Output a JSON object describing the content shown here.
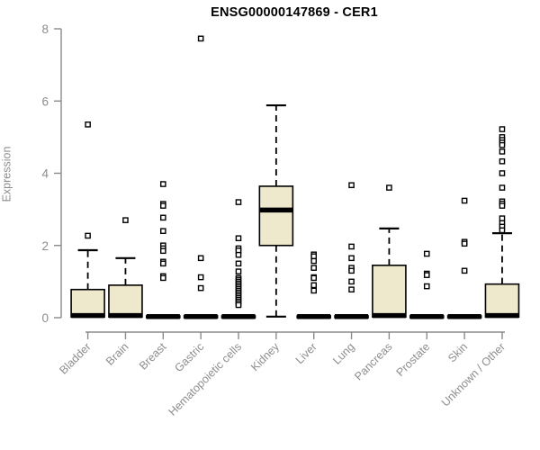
{
  "chart_data": {
    "type": "box",
    "title": "ENSG00000147869 - CER1",
    "ylabel": "Expression",
    "xlabel": "",
    "ylim": [
      0,
      8
    ],
    "yticks": [
      0,
      2,
      4,
      6,
      8
    ],
    "grid": false,
    "legend": "none",
    "categories": [
      "Bladder",
      "Brain",
      "Breast",
      "Gastric",
      "Hematopoietic cells",
      "Kidney",
      "Liver",
      "Lung",
      "Pancreas",
      "Prostate",
      "Skin",
      "Unknown / Other"
    ],
    "boxes": [
      {
        "category": "Bladder",
        "q1": 0.02,
        "median": 0.06,
        "q3": 0.78,
        "whisker_low": 0,
        "whisker_high": 1.87,
        "outliers": [
          2.27,
          5.35
        ]
      },
      {
        "category": "Brain",
        "q1": 0.02,
        "median": 0.06,
        "q3": 0.9,
        "whisker_low": 0,
        "whisker_high": 1.65,
        "outliers": [
          2.7
        ]
      },
      {
        "category": "Breast",
        "q1": 0,
        "median": 0.03,
        "q3": 0.05,
        "whisker_low": 0,
        "whisker_high": 0.05,
        "outliers": [
          3.7,
          3.15,
          3.1,
          2.77,
          2.4,
          2.0,
          1.92,
          1.85,
          1.55,
          1.5,
          1.15,
          1.1
        ]
      },
      {
        "category": "Gastric",
        "q1": 0,
        "median": 0.03,
        "q3": 0.05,
        "whisker_low": 0,
        "whisker_high": 0.05,
        "outliers": [
          7.73,
          1.65,
          1.12,
          0.82
        ]
      },
      {
        "category": "Hematopoietic cells",
        "q1": 0,
        "median": 0.03,
        "q3": 0.05,
        "whisker_low": 0,
        "whisker_high": 0.05,
        "outliers": [
          3.2,
          2.2,
          1.92,
          1.86,
          1.74,
          1.5,
          1.28,
          1.1,
          1.05,
          1.0,
          0.95,
          0.9,
          0.85,
          0.8,
          0.75,
          0.7,
          0.65,
          0.6,
          0.55,
          0.5,
          0.45,
          0.4,
          0.35
        ]
      },
      {
        "category": "Kidney",
        "q1": 2.0,
        "median": 2.98,
        "q3": 3.64,
        "whisker_low": 0.03,
        "whisker_high": 5.88,
        "outliers": []
      },
      {
        "category": "Liver",
        "q1": 0,
        "median": 0.03,
        "q3": 0.05,
        "whisker_low": 0,
        "whisker_high": 0.05,
        "outliers": [
          1.75,
          1.7,
          1.57,
          1.38,
          1.12,
          1.1,
          0.9,
          0.75
        ]
      },
      {
        "category": "Lung",
        "q1": 0,
        "median": 0.03,
        "q3": 0.05,
        "whisker_low": 0,
        "whisker_high": 0.05,
        "outliers": [
          3.67,
          1.97,
          1.65,
          1.38,
          1.3,
          1.0,
          0.78
        ]
      },
      {
        "category": "Pancreas",
        "q1": 0.02,
        "median": 0.06,
        "q3": 1.45,
        "whisker_low": 0,
        "whisker_high": 2.47,
        "outliers": [
          3.6
        ]
      },
      {
        "category": "Prostate",
        "q1": 0,
        "median": 0.03,
        "q3": 0.05,
        "whisker_low": 0,
        "whisker_high": 0.05,
        "outliers": [
          1.77,
          1.22,
          1.18,
          0.87
        ]
      },
      {
        "category": "Skin",
        "q1": 0,
        "median": 0.03,
        "q3": 0.05,
        "whisker_low": 0,
        "whisker_high": 0.05,
        "outliers": [
          3.24,
          2.1,
          2.05,
          1.3
        ]
      },
      {
        "category": "Unknown / Other",
        "q1": 0.02,
        "median": 0.06,
        "q3": 0.93,
        "whisker_low": 0,
        "whisker_high": 2.34,
        "outliers": [
          5.22,
          5.0,
          4.92,
          4.85,
          4.78,
          4.6,
          4.33,
          4.0,
          3.6,
          3.22,
          3.16,
          3.1,
          2.75,
          2.62,
          2.52,
          2.42
        ]
      }
    ],
    "colors": {
      "box_fill": "#EEE8CC",
      "box_border": "#000000",
      "median": "#000000",
      "whisker": "#000000",
      "outlier_stroke": "#000000",
      "outlier_fill": "#ffffff",
      "axis": "#8a8a8a",
      "tick_label": "#8d8d8d",
      "title": "#000000",
      "background": "#ffffff"
    }
  }
}
